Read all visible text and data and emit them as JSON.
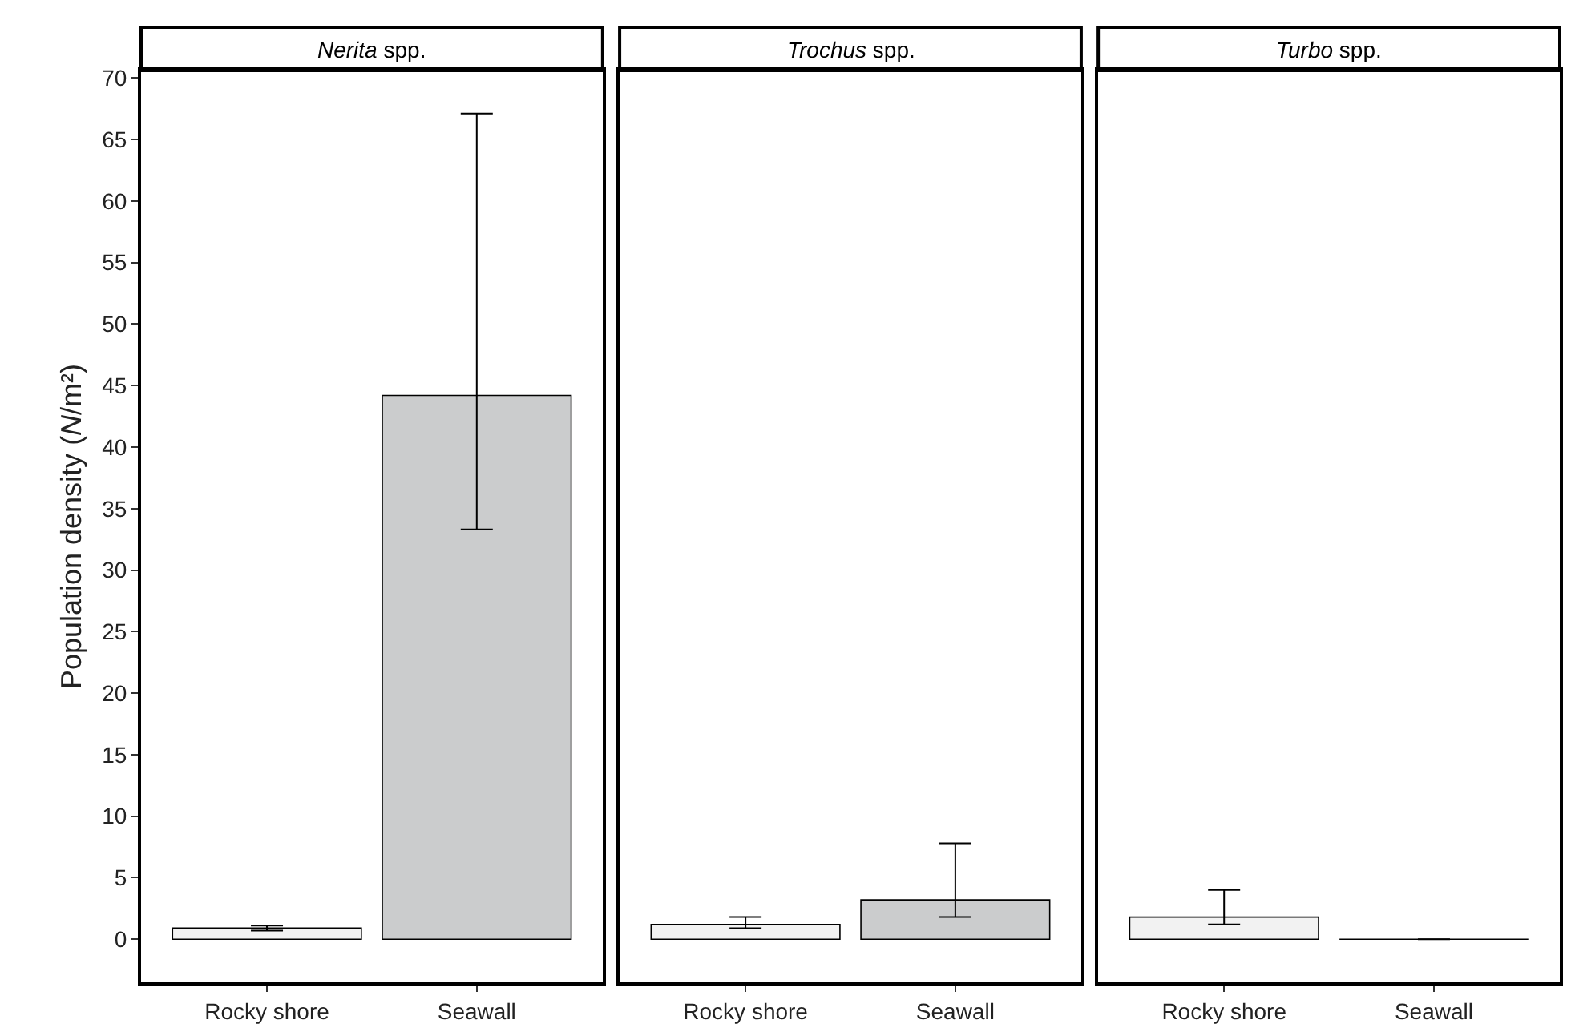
{
  "chart_data": [
    {
      "type": "bar",
      "title": "Nerita spp.",
      "ylabel": "Population density (N/m²)",
      "categories": [
        "Rocky shore",
        "Seawall"
      ],
      "values": [
        0.9,
        44.2
      ],
      "colors": [
        "#f2f2f2",
        "#cbcccd"
      ],
      "errors": [
        [
          0.7,
          1.1
        ],
        [
          33.3,
          67.1
        ]
      ],
      "ylim": [
        -3.5,
        70.6
      ],
      "yticks": [
        0,
        5,
        10,
        15,
        20,
        25,
        30,
        35,
        40,
        45,
        50,
        55,
        60,
        65,
        70
      ],
      "grid": false
    },
    {
      "type": "bar",
      "title": "Trochus spp.",
      "categories": [
        "Rocky shore",
        "Seawall"
      ],
      "values": [
        1.2,
        3.2
      ],
      "colors": [
        "#f2f2f2",
        "#cbcccd"
      ],
      "errors": [
        [
          0.9,
          1.8
        ],
        [
          1.8,
          7.8
        ]
      ],
      "ylim": [
        -3.5,
        70.6
      ],
      "yticks": [
        0,
        5,
        10,
        15,
        20,
        25,
        30,
        35,
        40,
        45,
        50,
        55,
        60,
        65,
        70
      ],
      "tick_labels": "x",
      "grid": false
    },
    {
      "type": "bar",
      "title": "Turbo spp.",
      "categories": [
        "Rocky shore",
        "Seawall"
      ],
      "values": [
        1.8,
        0
      ],
      "colors": [
        "#f2f2f2",
        "#000000"
      ],
      "errors": [
        [
          1.2,
          4.0
        ],
        null
      ],
      "ylim": [
        -3.5,
        70.6
      ],
      "yticks": [
        0,
        5,
        10,
        15,
        20,
        25,
        30,
        35,
        40,
        45,
        50,
        55,
        60,
        65,
        70
      ],
      "tick_labels": "x",
      "grid": false
    }
  ]
}
